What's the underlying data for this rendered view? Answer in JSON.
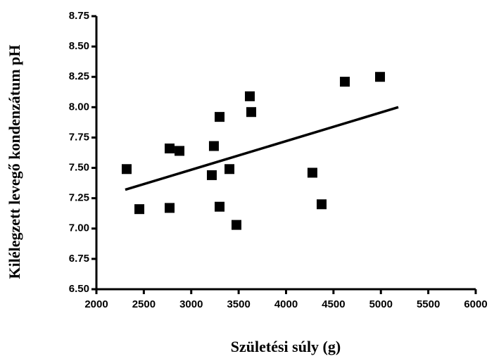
{
  "chart_data": {
    "type": "scatter",
    "x_label": "Születési súly (g)",
    "y_label": "Kilélegzett levegő kondenzátum pH",
    "series": [
      {
        "color": "#000000",
        "x": [
          2319,
          2453,
          2772,
          2772,
          2876,
          3217,
          3239,
          3299,
          3299,
          3403,
          3477,
          3618,
          3633,
          4278,
          4375,
          4620,
          4991
        ],
        "y": [
          7.49,
          7.16,
          7.66,
          7.17,
          7.64,
          7.44,
          7.68,
          7.92,
          7.18,
          7.49,
          7.03,
          8.09,
          7.96,
          7.46,
          7.2,
          8.21,
          8.25
        ]
      }
    ],
    "trendline": {
      "color": "#000000",
      "x": [
        2304,
        5184
      ],
      "y": [
        7.32,
        8.0
      ]
    },
    "xlim": [
      2000,
      6000
    ],
    "xticks": [
      2000,
      2500,
      3000,
      3500,
      4000,
      4500,
      5000,
      5500,
      6000
    ],
    "ylim": [
      6.5,
      8.75
    ],
    "yticks": [
      {
        "value": 6.5,
        "label": "6.50"
      },
      {
        "value": 6.75,
        "label": "6.75"
      },
      {
        "value": 7,
        "label": "7.00"
      },
      {
        "value": 7.25,
        "label": "7.25"
      },
      {
        "value": 7.5,
        "label": "7.50"
      },
      {
        "value": 7.75,
        "label": "7.75"
      },
      {
        "value": 8,
        "label": "8.00"
      },
      {
        "value": 8.25,
        "label": "8.25"
      },
      {
        "value": 8.5,
        "label": "8.50"
      },
      {
        "value": 8.75,
        "label": "8.75"
      }
    ],
    "grid": false
  }
}
